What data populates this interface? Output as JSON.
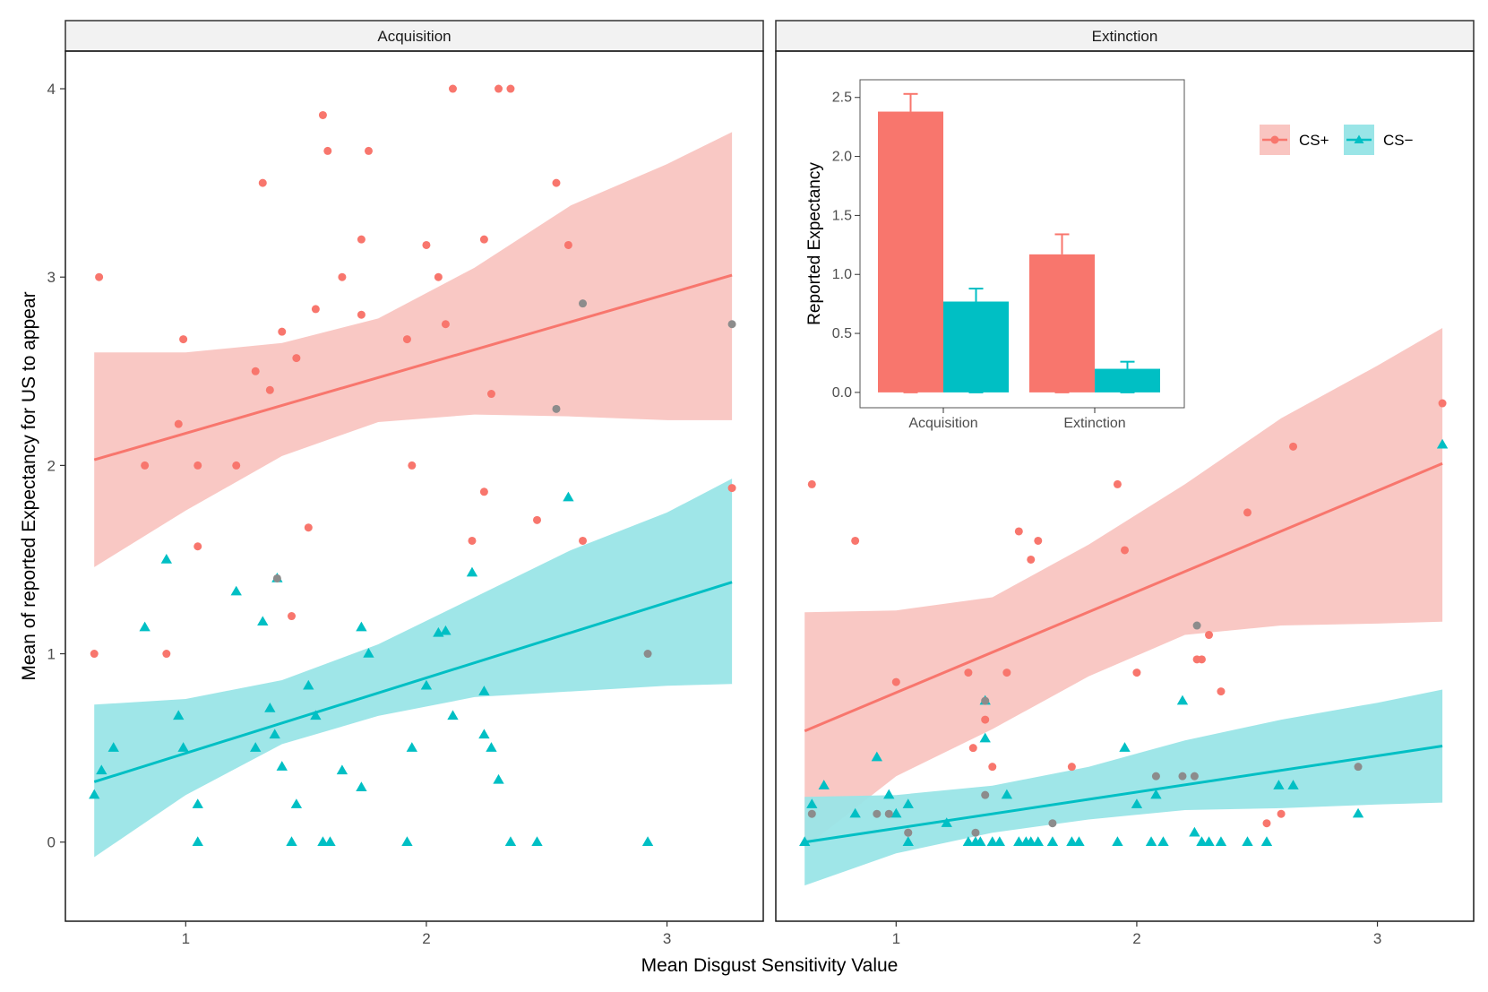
{
  "chart_data": {
    "type": "scatter",
    "xlabel": "Mean Disgust Sensitivity Value",
    "ylabel": "Mean of reported Expectancy for US to appear",
    "xlim": [
      0.5,
      3.4
    ],
    "ylim": [
      -0.42,
      4.2
    ],
    "x_ticks": [
      1,
      2,
      3
    ],
    "y_ticks": [
      0,
      1,
      2,
      3,
      4
    ],
    "colors": {
      "cs_plus": "#F8766D",
      "cs_minus": "#00BFC4",
      "overlap": "#8C8C8C",
      "cs_plus_band": "#F9C5C1",
      "cs_minus_band": "#9AE5E7"
    },
    "legend": {
      "position": "top-right",
      "entries": [
        "CS+",
        "CS−"
      ]
    },
    "panels": [
      {
        "name": "Acquisition",
        "fits": {
          "cs_plus": {
            "x": [
              0.62,
              3.27
            ],
            "y": [
              2.03,
              3.01
            ],
            "band_upper": [
              [
                0.62,
                2.6
              ],
              [
                1.0,
                2.6
              ],
              [
                1.4,
                2.65
              ],
              [
                1.8,
                2.78
              ],
              [
                2.2,
                3.05
              ],
              [
                2.6,
                3.38
              ],
              [
                3.0,
                3.6
              ],
              [
                3.27,
                3.77
              ]
            ],
            "band_lower": [
              [
                0.62,
                1.46
              ],
              [
                1.0,
                1.76
              ],
              [
                1.4,
                2.05
              ],
              [
                1.8,
                2.23
              ],
              [
                2.2,
                2.27
              ],
              [
                2.6,
                2.26
              ],
              [
                3.0,
                2.24
              ],
              [
                3.27,
                2.24
              ]
            ]
          },
          "cs_minus": {
            "x": [
              0.62,
              3.27
            ],
            "y": [
              0.32,
              1.38
            ],
            "band_upper": [
              [
                0.62,
                0.73
              ],
              [
                1.0,
                0.76
              ],
              [
                1.4,
                0.86
              ],
              [
                1.8,
                1.05
              ],
              [
                2.2,
                1.3
              ],
              [
                2.6,
                1.55
              ],
              [
                3.0,
                1.75
              ],
              [
                3.27,
                1.93
              ]
            ],
            "band_lower": [
              [
                0.62,
                -0.08
              ],
              [
                1.0,
                0.25
              ],
              [
                1.4,
                0.52
              ],
              [
                1.8,
                0.67
              ],
              [
                2.2,
                0.77
              ],
              [
                2.6,
                0.8
              ],
              [
                3.0,
                0.83
              ],
              [
                3.27,
                0.84
              ]
            ]
          }
        },
        "cs_plus_points": [
          [
            0.62,
            1.0
          ],
          [
            0.64,
            3.0
          ],
          [
            0.83,
            2.0
          ],
          [
            0.92,
            1.0
          ],
          [
            0.97,
            2.22
          ],
          [
            0.99,
            2.67
          ],
          [
            1.05,
            2.0
          ],
          [
            1.05,
            1.57
          ],
          [
            1.21,
            2.0
          ],
          [
            1.29,
            2.5
          ],
          [
            1.32,
            3.5
          ],
          [
            1.35,
            2.4
          ],
          [
            1.4,
            2.71
          ],
          [
            1.44,
            1.2
          ],
          [
            1.46,
            2.57
          ],
          [
            1.51,
            1.67
          ],
          [
            1.54,
            2.83
          ],
          [
            1.57,
            3.86
          ],
          [
            1.59,
            3.67
          ],
          [
            1.65,
            3.0
          ],
          [
            1.73,
            3.2
          ],
          [
            1.73,
            2.8
          ],
          [
            1.76,
            3.67
          ],
          [
            1.92,
            2.67
          ],
          [
            1.94,
            2.0
          ],
          [
            2.0,
            3.17
          ],
          [
            2.05,
            3.0
          ],
          [
            2.08,
            2.75
          ],
          [
            2.11,
            4.0
          ],
          [
            2.19,
            1.6
          ],
          [
            2.24,
            3.2
          ],
          [
            2.24,
            1.86
          ],
          [
            2.27,
            2.38
          ],
          [
            2.3,
            4.0
          ],
          [
            2.35,
            4.0
          ],
          [
            2.46,
            1.71
          ],
          [
            2.54,
            3.5
          ],
          [
            2.59,
            3.17
          ],
          [
            2.65,
            1.6
          ],
          [
            3.27,
            1.88
          ]
        ],
        "cs_minus_points": [
          [
            0.62,
            0.25
          ],
          [
            0.65,
            0.38
          ],
          [
            0.7,
            0.5
          ],
          [
            0.83,
            1.14
          ],
          [
            0.92,
            1.5
          ],
          [
            0.97,
            0.67
          ],
          [
            0.99,
            0.5
          ],
          [
            1.05,
            0.2
          ],
          [
            1.05,
            0.0
          ],
          [
            1.21,
            1.33
          ],
          [
            1.29,
            0.5
          ],
          [
            1.32,
            1.17
          ],
          [
            1.35,
            0.71
          ],
          [
            1.37,
            0.57
          ],
          [
            1.38,
            1.4
          ],
          [
            1.4,
            0.4
          ],
          [
            1.44,
            0.0
          ],
          [
            1.46,
            0.2
          ],
          [
            1.51,
            0.83
          ],
          [
            1.54,
            0.67
          ],
          [
            1.57,
            0.0
          ],
          [
            1.6,
            0.0
          ],
          [
            1.65,
            0.38
          ],
          [
            1.73,
            1.14
          ],
          [
            1.73,
            0.29
          ],
          [
            1.76,
            1.0
          ],
          [
            1.92,
            0.0
          ],
          [
            1.94,
            0.5
          ],
          [
            2.0,
            0.83
          ],
          [
            2.05,
            1.11
          ],
          [
            2.08,
            1.12
          ],
          [
            2.11,
            0.67
          ],
          [
            2.19,
            1.43
          ],
          [
            2.24,
            0.8
          ],
          [
            2.24,
            0.57
          ],
          [
            2.27,
            0.5
          ],
          [
            2.3,
            0.33
          ],
          [
            2.35,
            0.0
          ],
          [
            2.46,
            0.0
          ],
          [
            2.59,
            1.83
          ],
          [
            2.92,
            0.0
          ]
        ],
        "overlap_points": [
          [
            1.38,
            1.4
          ],
          [
            2.54,
            2.3
          ],
          [
            2.65,
            2.86
          ],
          [
            2.92,
            1.0
          ],
          [
            3.27,
            2.75
          ]
        ]
      },
      {
        "name": "Extinction",
        "fits": {
          "cs_plus": {
            "x": [
              0.62,
              3.27
            ],
            "y": [
              0.59,
              2.01
            ],
            "band_upper": [
              [
                0.62,
                1.22
              ],
              [
                1.0,
                1.23
              ],
              [
                1.4,
                1.3
              ],
              [
                1.8,
                1.58
              ],
              [
                2.2,
                1.9
              ],
              [
                2.6,
                2.25
              ],
              [
                3.0,
                2.53
              ],
              [
                3.27,
                2.73
              ]
            ],
            "band_lower": [
              [
                0.62,
                -0.03
              ],
              [
                1.0,
                0.35
              ],
              [
                1.4,
                0.6
              ],
              [
                1.8,
                0.88
              ],
              [
                2.2,
                1.1
              ],
              [
                2.6,
                1.15
              ],
              [
                3.0,
                1.16
              ],
              [
                3.27,
                1.17
              ]
            ]
          },
          "cs_minus": {
            "x": [
              0.62,
              3.27
            ],
            "y": [
              0.0,
              0.51
            ],
            "band_upper": [
              [
                0.62,
                0.24
              ],
              [
                1.0,
                0.25
              ],
              [
                1.4,
                0.3
              ],
              [
                1.8,
                0.4
              ],
              [
                2.2,
                0.54
              ],
              [
                2.6,
                0.65
              ],
              [
                3.0,
                0.74
              ],
              [
                3.27,
                0.81
              ]
            ],
            "band_lower": [
              [
                0.62,
                -0.23
              ],
              [
                1.0,
                -0.06
              ],
              [
                1.4,
                0.05
              ],
              [
                1.8,
                0.12
              ],
              [
                2.2,
                0.17
              ],
              [
                2.6,
                0.18
              ],
              [
                3.0,
                0.2
              ],
              [
                3.27,
                0.21
              ]
            ]
          }
        },
        "cs_plus_points": [
          [
            0.65,
            1.9
          ],
          [
            0.83,
            1.6
          ],
          [
            1.0,
            0.85
          ],
          [
            1.05,
            0.05
          ],
          [
            1.3,
            0.9
          ],
          [
            1.32,
            0.5
          ],
          [
            1.37,
            0.65
          ],
          [
            1.4,
            0.4
          ],
          [
            1.46,
            0.9
          ],
          [
            1.51,
            1.65
          ],
          [
            1.56,
            1.5
          ],
          [
            1.59,
            1.6
          ],
          [
            1.73,
            0.4
          ],
          [
            1.92,
            1.9
          ],
          [
            1.95,
            1.55
          ],
          [
            2.0,
            0.9
          ],
          [
            2.25,
            0.97
          ],
          [
            2.27,
            0.97
          ],
          [
            2.3,
            1.1
          ],
          [
            2.35,
            0.8
          ],
          [
            2.46,
            1.75
          ],
          [
            2.54,
            0.1
          ],
          [
            2.6,
            0.15
          ],
          [
            2.65,
            2.1
          ],
          [
            3.27,
            2.33
          ]
        ],
        "cs_minus_points": [
          [
            0.62,
            0.0
          ],
          [
            0.65,
            0.2
          ],
          [
            0.7,
            0.3
          ],
          [
            0.83,
            0.15
          ],
          [
            0.92,
            0.45
          ],
          [
            0.97,
            0.25
          ],
          [
            1.0,
            0.15
          ],
          [
            1.05,
            0.2
          ],
          [
            1.05,
            0.0
          ],
          [
            1.21,
            0.1
          ],
          [
            1.3,
            0.0
          ],
          [
            1.33,
            0.0
          ],
          [
            1.35,
            0.0
          ],
          [
            1.37,
            0.55
          ],
          [
            1.37,
            0.75
          ],
          [
            1.4,
            0.0
          ],
          [
            1.43,
            0.0
          ],
          [
            1.46,
            0.25
          ],
          [
            1.51,
            0.0
          ],
          [
            1.54,
            0.0
          ],
          [
            1.56,
            0.0
          ],
          [
            1.59,
            0.0
          ],
          [
            1.65,
            0.0
          ],
          [
            1.73,
            0.0
          ],
          [
            1.76,
            0.0
          ],
          [
            1.92,
            0.0
          ],
          [
            1.95,
            0.5
          ],
          [
            2.0,
            0.2
          ],
          [
            2.06,
            0.0
          ],
          [
            2.08,
            0.25
          ],
          [
            2.11,
            0.0
          ],
          [
            2.19,
            0.75
          ],
          [
            2.24,
            0.05
          ],
          [
            2.27,
            0.0
          ],
          [
            2.3,
            0.0
          ],
          [
            2.35,
            0.0
          ],
          [
            2.46,
            0.0
          ],
          [
            2.54,
            0.0
          ],
          [
            2.59,
            0.3
          ],
          [
            2.65,
            0.3
          ],
          [
            2.92,
            0.15
          ],
          [
            3.27,
            2.11
          ]
        ],
        "overlap_points": [
          [
            0.65,
            0.15
          ],
          [
            0.92,
            0.15
          ],
          [
            0.97,
            0.15
          ],
          [
            1.05,
            0.05
          ],
          [
            1.33,
            0.05
          ],
          [
            1.37,
            0.25
          ],
          [
            1.37,
            0.75
          ],
          [
            1.65,
            0.1
          ],
          [
            2.08,
            0.35
          ],
          [
            2.19,
            0.35
          ],
          [
            2.24,
            0.35
          ],
          [
            2.25,
            1.15
          ],
          [
            2.92,
            0.4
          ]
        ]
      }
    ],
    "inset": {
      "type": "bar",
      "ylabel": "Reported Expectancy",
      "categories": [
        "Acquisition",
        "Extinction"
      ],
      "ylim": [
        -0.13,
        2.65
      ],
      "y_ticks": [
        "0.0",
        "0.5",
        "1.0",
        "1.5",
        "2.0",
        "2.5"
      ],
      "series": [
        {
          "name": "CS+",
          "values": [
            2.38,
            1.17
          ],
          "errors": [
            0.15,
            0.17
          ]
        },
        {
          "name": "CS−",
          "values": [
            0.77,
            0.2
          ],
          "errors": [
            0.11,
            0.06
          ]
        }
      ]
    }
  }
}
